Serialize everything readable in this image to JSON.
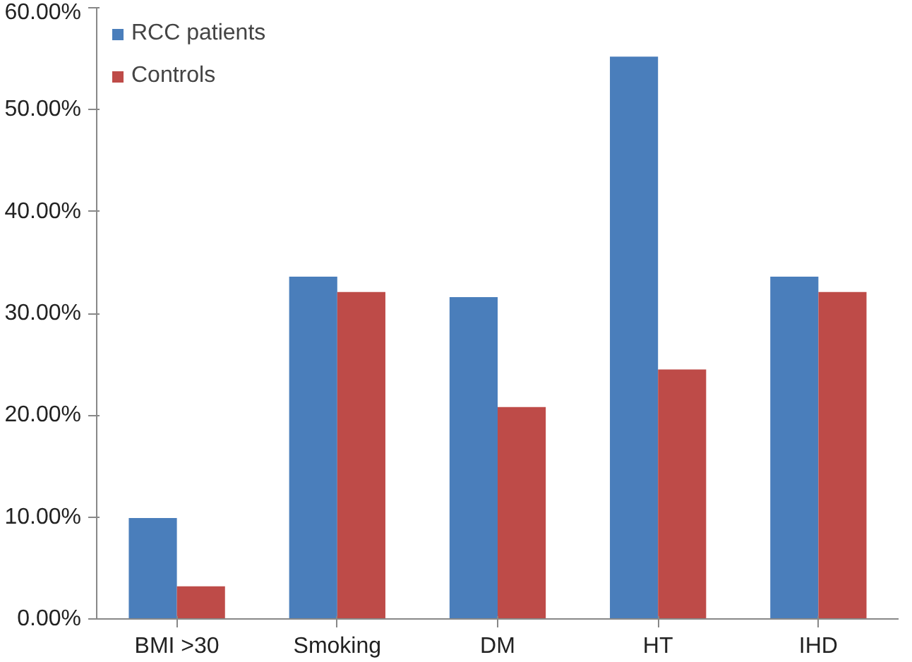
{
  "chart_data": {
    "type": "bar",
    "categories": [
      "BMI >30",
      "Smoking",
      "DM",
      "HT",
      "IHD"
    ],
    "series": [
      {
        "name": "RCC patients",
        "color": "#4a7ebb",
        "values": [
          9.9,
          33.6,
          31.6,
          55.2,
          33.6
        ]
      },
      {
        "name": "Controls",
        "color": "#be4b48",
        "values": [
          3.2,
          32.1,
          20.8,
          24.5,
          32.1
        ]
      }
    ],
    "ylim": [
      0,
      60
    ],
    "yticks": [
      {
        "value": 0,
        "label": "0.00%"
      },
      {
        "value": 10,
        "label": "10.00%"
      },
      {
        "value": 20,
        "label": "20.00%"
      },
      {
        "value": 30,
        "label": "30.00%"
      },
      {
        "value": 40,
        "label": "40.00%"
      },
      {
        "value": 50,
        "label": "50.00%"
      },
      {
        "value": 60,
        "label": "60.00%"
      }
    ],
    "grid": false,
    "legend": "top left"
  }
}
